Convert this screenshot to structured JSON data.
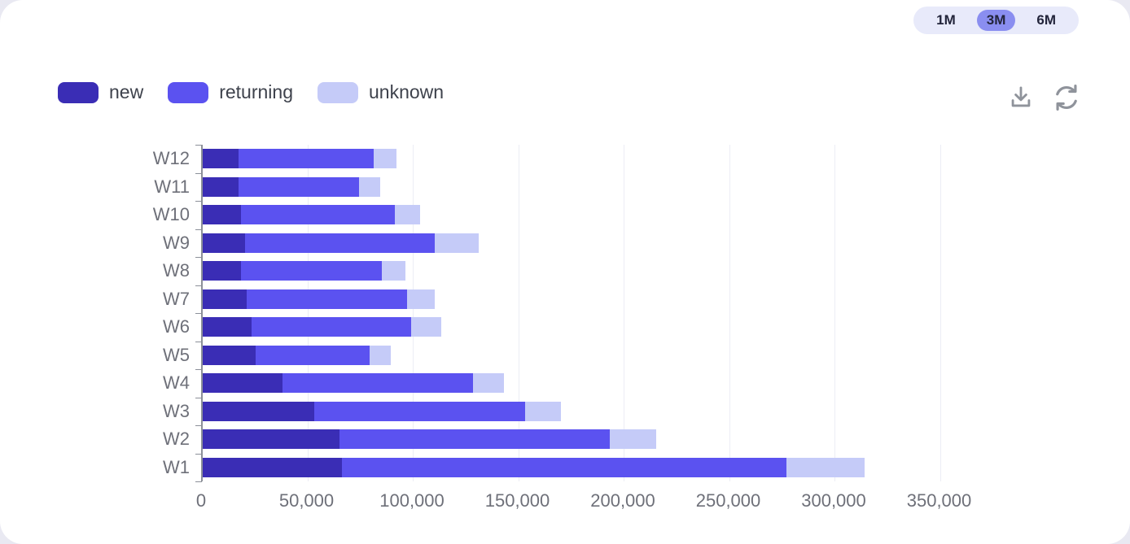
{
  "time_range": {
    "options": [
      "1M",
      "3M",
      "6M"
    ],
    "selected": "3M",
    "selected_bg": "#8A8EF0",
    "container_bg": "#E8EAFA"
  },
  "toolbar": {
    "icons": [
      "download-icon",
      "refresh-icon"
    ],
    "icon_color": "#8F939B"
  },
  "legend": {
    "items": [
      {
        "label": "new",
        "color": "#3A2DB5"
      },
      {
        "label": "returning",
        "color": "#5B52F0"
      },
      {
        "label": "unknown",
        "color": "#C5CBF8"
      }
    ]
  },
  "chart_data": {
    "type": "bar",
    "orientation": "horizontal",
    "stacked": true,
    "categories": [
      "W12",
      "W11",
      "W10",
      "W9",
      "W8",
      "W7",
      "W6",
      "W5",
      "W4",
      "W3",
      "W2",
      "W1"
    ],
    "series": [
      {
        "name": "new",
        "color": "#3A2DB5",
        "values": [
          17000,
          17000,
          18000,
          20000,
          18000,
          21000,
          23000,
          25000,
          38000,
          53000,
          65000,
          66000
        ]
      },
      {
        "name": "returning",
        "color": "#5B52F0",
        "values": [
          64000,
          57000,
          73000,
          90000,
          67000,
          76000,
          76000,
          54000,
          90000,
          100000,
          128000,
          211000
        ]
      },
      {
        "name": "unknown",
        "color": "#C5CBF8",
        "values": [
          11000,
          10000,
          12000,
          21000,
          11000,
          13000,
          14000,
          10000,
          15000,
          17000,
          22000,
          37000
        ]
      }
    ],
    "x_ticks": [
      0,
      50000,
      100000,
      150000,
      200000,
      250000,
      300000,
      350000
    ],
    "x_tick_labels": [
      "0",
      "50,000",
      "100,000",
      "150,000",
      "200,000",
      "250,000",
      "300,000",
      "350,000"
    ],
    "xlim": [
      0,
      363000
    ],
    "grid": "vertical",
    "axis_text_color": "#6E7079",
    "gridline_color": "#ECEDF5"
  }
}
